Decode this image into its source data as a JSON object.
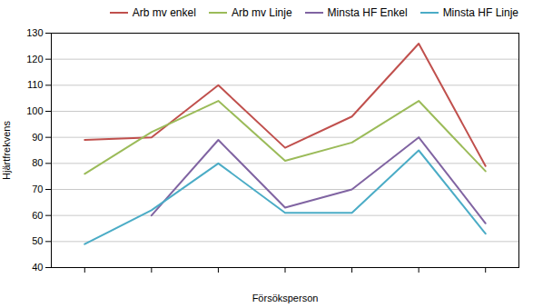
{
  "chart_data": {
    "type": "line",
    "x": [
      1,
      2,
      3,
      4,
      5,
      6,
      7
    ],
    "series": [
      {
        "name": "Arb mv enkel",
        "color": "#C0504D",
        "values": [
          89,
          90,
          110,
          86,
          98,
          126,
          79
        ]
      },
      {
        "name": "Arb mv Linje",
        "color": "#9BBB59",
        "values": [
          76,
          92,
          104,
          81,
          88,
          104,
          77
        ]
      },
      {
        "name": "Minsta HF Enkel",
        "color": "#8064A2",
        "values": [
          null,
          60,
          89,
          63,
          70,
          90,
          57
        ]
      },
      {
        "name": "Minsta HF Linje",
        "color": "#4BACC6",
        "values": [
          49,
          62,
          80,
          61,
          61,
          85,
          53
        ]
      }
    ],
    "xlabel": "Försöksperson",
    "ylabel": "Hjärtfrekvens",
    "xlim": [
      0.5,
      7.5
    ],
    "xticks": [
      1,
      2,
      3,
      4,
      5,
      6,
      7
    ],
    "ylim": [
      40,
      130
    ],
    "yticks": [
      40,
      50,
      60,
      70,
      80,
      90,
      100,
      110,
      120,
      130
    ],
    "tick_labels": "y",
    "grid": "y",
    "legend": "upper right"
  }
}
